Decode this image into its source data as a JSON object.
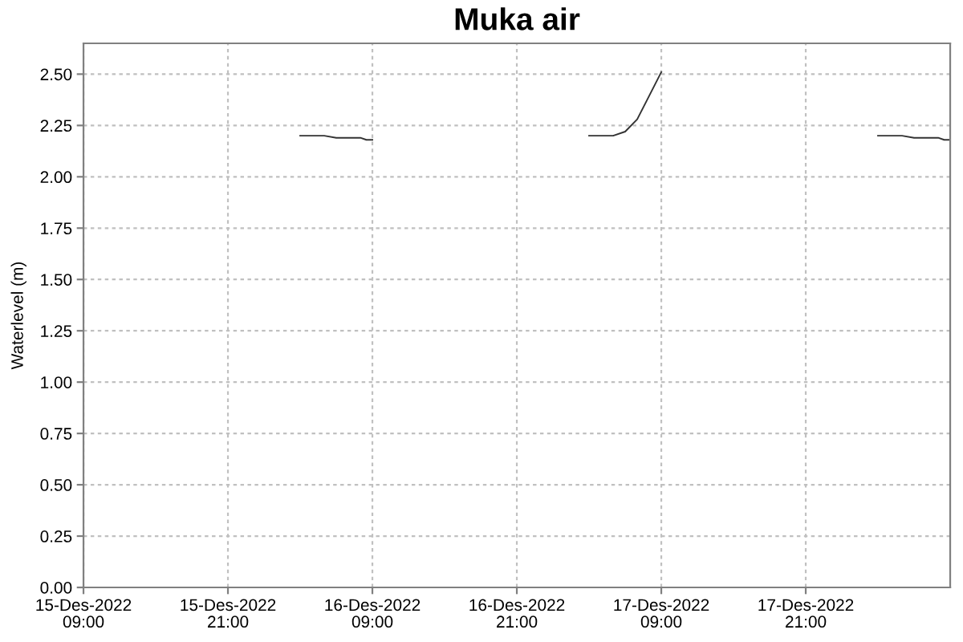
{
  "chart_data": {
    "type": "line",
    "title": "Muka air",
    "ylabel": "Waterlevel (m)",
    "series": [
      {
        "color": "#333333",
        "x": [
          "2022-12-16T03:00",
          "2022-12-16T05:00",
          "2022-12-16T06:00",
          "2022-12-16T08:00",
          "2022-12-16T08:30",
          "2022-12-16T09:00",
          "2022-12-16T12:00",
          "2022-12-17T03:00",
          "2022-12-17T05:00",
          "2022-12-17T06:00",
          "2022-12-17T07:00",
          "2022-12-17T09:00",
          "2022-12-17T12:00",
          "2022-12-18T03:00",
          "2022-12-18T05:00",
          "2022-12-18T06:00",
          "2022-12-18T08:00",
          "2022-12-18T08:30",
          "2022-12-18T09:00"
        ],
        "values": [
          2.2,
          2.2,
          2.19,
          2.19,
          2.18,
          2.18,
          null,
          2.2,
          2.2,
          2.22,
          2.28,
          2.51,
          null,
          2.2,
          2.2,
          2.19,
          2.19,
          2.18,
          2.18
        ]
      }
    ],
    "xlim": [
      "2022-12-15T09:00",
      "2022-12-18T09:00"
    ],
    "xticks": [
      {
        "value": "2022-12-15T09:00",
        "label": "15-Des-2022\n09:00"
      },
      {
        "value": "2022-12-15T21:00",
        "label": "15-Des-2022\n21:00"
      },
      {
        "value": "2022-12-16T09:00",
        "label": "16-Des-2022\n09:00"
      },
      {
        "value": "2022-12-16T21:00",
        "label": "16-Des-2022\n21:00"
      },
      {
        "value": "2022-12-17T09:00",
        "label": "17-Des-2022\n09:00"
      },
      {
        "value": "2022-12-17T21:00",
        "label": "17-Des-2022\n21:00"
      }
    ],
    "ylim": [
      0,
      2.65
    ],
    "yticks": [
      {
        "value": 0,
        "label": "0.00"
      },
      {
        "value": 0.25,
        "label": "0.25"
      },
      {
        "value": 0.5,
        "label": "0.50"
      },
      {
        "value": 0.75,
        "label": "0.75"
      },
      {
        "value": 1.0,
        "label": "1.00"
      },
      {
        "value": 1.25,
        "label": "1.25"
      },
      {
        "value": 1.5,
        "label": "1.50"
      },
      {
        "value": 1.75,
        "label": "1.75"
      },
      {
        "value": 2.0,
        "label": "2.00"
      },
      {
        "value": 2.25,
        "label": "2.25"
      },
      {
        "value": 2.5,
        "label": "2.50"
      }
    ],
    "grid": true,
    "marker": "none",
    "line_style": "solid"
  }
}
